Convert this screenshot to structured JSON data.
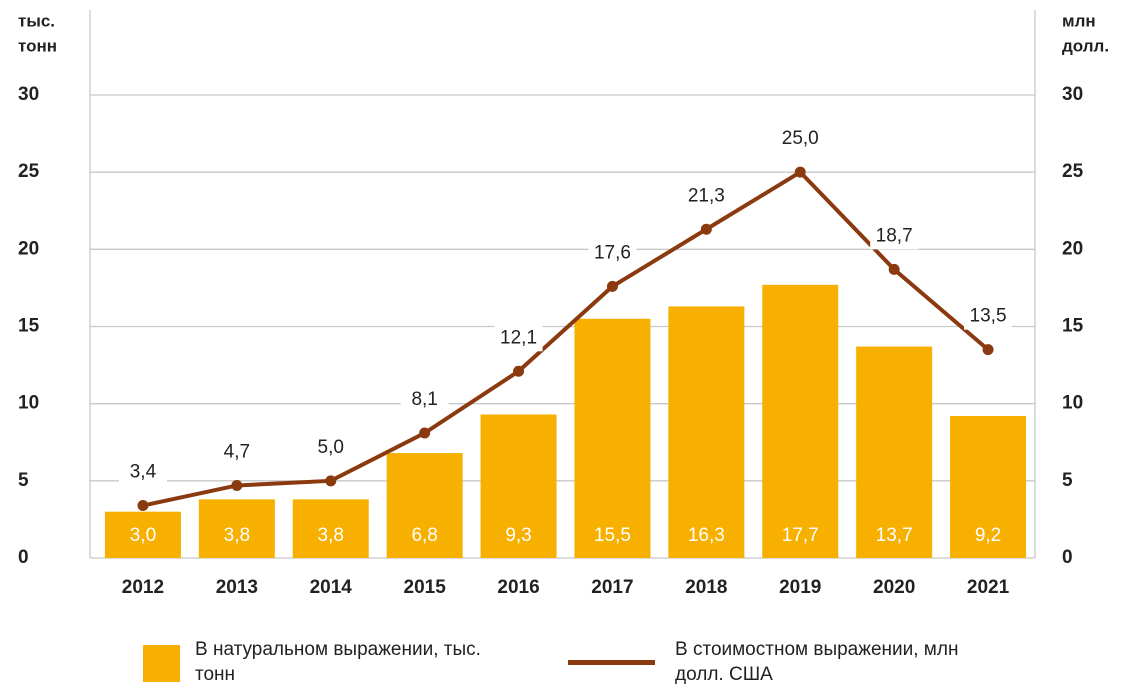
{
  "chart_data": {
    "type": "bar-line",
    "ylabel": [
      "тыс.",
      "тонн"
    ],
    "y2label": [
      "млн",
      "долл."
    ],
    "categories": [
      "2012",
      "2013",
      "2014",
      "2015",
      "2016",
      "2017",
      "2018",
      "2019",
      "2020",
      "2021"
    ],
    "series": [
      {
        "name": "В натуральном выражении, тыс. тонн",
        "type": "bar",
        "color": "#f7b000",
        "axis": "y",
        "values": [
          3.0,
          3.8,
          3.8,
          6.8,
          9.3,
          15.5,
          16.3,
          17.7,
          13.7,
          9.2
        ],
        "value_labels": [
          "3,0",
          "3,8",
          "3,8",
          "6,8",
          "9,3",
          "15,5",
          "16,3",
          "17,7",
          "13,7",
          "9,2"
        ]
      },
      {
        "name": "В стоимостном выражении, млн долл. США",
        "type": "line",
        "color": "#8b3a10",
        "axis": "y2",
        "values": [
          3.4,
          4.7,
          5.0,
          8.1,
          12.1,
          17.6,
          21.3,
          25.0,
          18.7,
          13.5
        ],
        "value_labels": [
          "3,4",
          "4,7",
          "5,0",
          "8,1",
          "12,1",
          "17,6",
          "21,3",
          "25,0",
          "18,7",
          "13,5"
        ]
      }
    ],
    "ylim": [
      0,
      30
    ],
    "yticks": [
      0,
      5,
      10,
      15,
      20,
      25,
      30
    ],
    "y2lim": [
      0,
      30
    ],
    "y2ticks": [
      0,
      5,
      10,
      15,
      20,
      25,
      30
    ],
    "grid": true
  }
}
